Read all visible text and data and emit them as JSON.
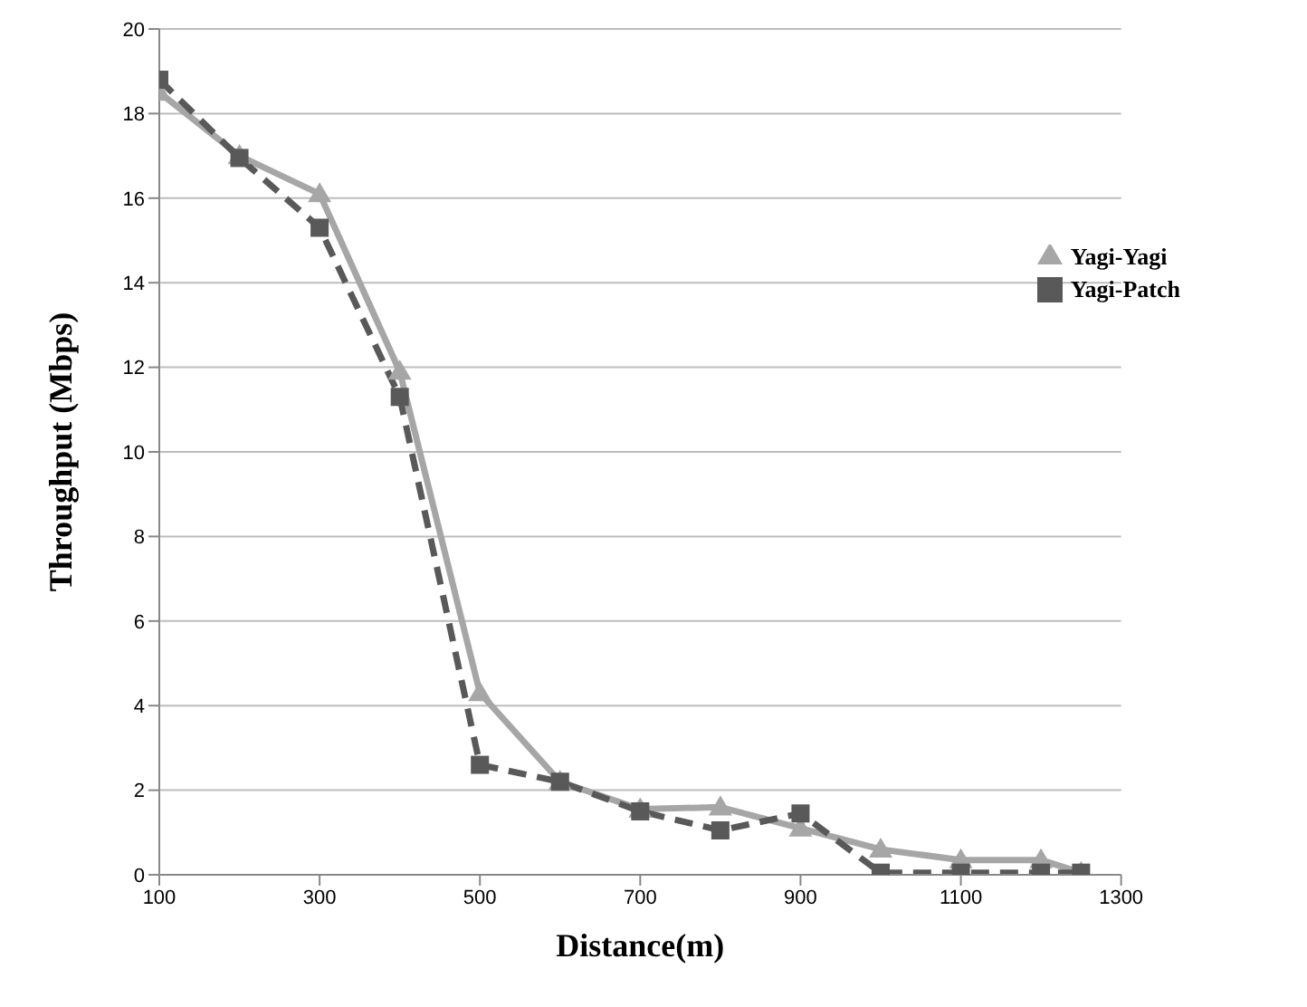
{
  "chart_data": {
    "type": "line",
    "xlabel": "Distance(m)",
    "ylabel": "Throughput  (Mbps)",
    "x": [
      100,
      200,
      300,
      400,
      500,
      600,
      700,
      800,
      900,
      1000,
      1100,
      1200,
      1250
    ],
    "series": [
      {
        "name": "Yagi-Yagi",
        "color": "#a6a6a6",
        "marker": "triangle",
        "line_style": "solid",
        "values": [
          18.5,
          17.0,
          16.1,
          11.9,
          4.3,
          2.2,
          1.55,
          1.6,
          1.1,
          0.6,
          0.35,
          0.35,
          0.05
        ]
      },
      {
        "name": "Yagi-Patch",
        "color": "#595959",
        "marker": "square",
        "line_style": "dashed",
        "values": [
          18.8,
          16.95,
          15.3,
          11.3,
          2.6,
          2.2,
          1.5,
          1.05,
          1.45,
          0.05,
          0.05,
          0.05,
          0.05
        ]
      }
    ],
    "xlim": [
      100,
      1300
    ],
    "xticks": [
      100,
      300,
      500,
      700,
      900,
      1100,
      1300
    ],
    "ylim": [
      0,
      20
    ],
    "yticks": [
      0,
      2,
      4,
      6,
      8,
      10,
      12,
      14,
      16,
      18,
      20
    ],
    "grid": "y",
    "legend": "top right"
  }
}
